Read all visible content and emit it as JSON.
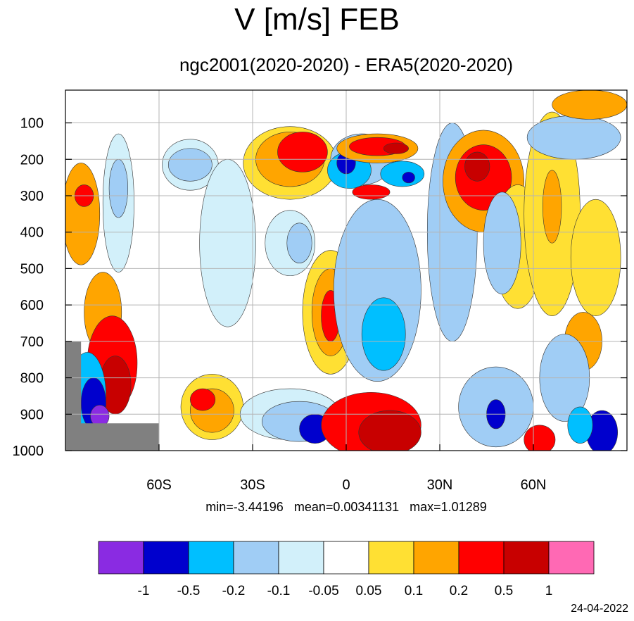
{
  "title": "V [m/s] FEB",
  "subtitle": "ngc2001(2020-2020) - ERA5(2020-2020)",
  "stats": {
    "min": "min=-3.44196",
    "mean": "mean=0.00341131",
    "max": "max=1.01289"
  },
  "date": "24-04-2022",
  "chart_data": {
    "type": "heatmap",
    "title": "V [m/s] FEB",
    "subtitle": "ngc2001(2020-2020) - ERA5(2020-2020)",
    "x_axis": {
      "range": [
        -90,
        90
      ],
      "ticks": [
        -60,
        -30,
        0,
        30,
        60
      ],
      "tick_labels": [
        "60S",
        "30S",
        "0",
        "30N",
        "60N"
      ]
    },
    "y_axis": {
      "range": [
        1000,
        10
      ],
      "ticks": [
        100,
        200,
        300,
        400,
        500,
        600,
        700,
        800,
        900,
        1000
      ],
      "tick_labels": [
        "100",
        "200",
        "300",
        "400",
        "500",
        "600",
        "700",
        "800",
        "900",
        "1000"
      ],
      "inverted": true
    },
    "grid": true,
    "colorbar": {
      "levels": [
        "-1",
        "-0.5",
        "-0.2",
        "-0.1",
        "-0.05",
        "0.05",
        "0.1",
        "0.2",
        "0.5",
        "1"
      ],
      "colors": [
        "#8a2be2",
        "#0000cd",
        "#00bfff",
        "#a0cdf5",
        "#d2f0fa",
        "#ffffff",
        "#ffe033",
        "#ffa500",
        "#ff0000",
        "#c80000",
        "#ff69b4"
      ]
    },
    "stats": {
      "min": -3.44196,
      "mean": 0.00341131,
      "max": 1.01289
    },
    "blobs": [
      {
        "lat": -85,
        "p": 350,
        "rx": 6,
        "ry": 140,
        "level": 7
      },
      {
        "lat": -84,
        "p": 300,
        "rx": 3,
        "ry": 30,
        "level": 8
      },
      {
        "lat": -78,
        "p": 620,
        "rx": 6,
        "ry": 110,
        "level": 7
      },
      {
        "lat": -75,
        "p": 760,
        "rx": 8,
        "ry": 130,
        "level": 8
      },
      {
        "lat": -74,
        "p": 820,
        "rx": 5,
        "ry": 80,
        "level": 9
      },
      {
        "lat": -83,
        "p": 850,
        "rx": 6,
        "ry": 120,
        "level": 2
      },
      {
        "lat": -81,
        "p": 870,
        "rx": 4,
        "ry": 70,
        "level": 1
      },
      {
        "lat": -79,
        "p": 905,
        "rx": 3,
        "ry": 30,
        "level": 0
      },
      {
        "lat": -73,
        "p": 320,
        "rx": 5,
        "ry": 190,
        "level": 4
      },
      {
        "lat": -73,
        "p": 280,
        "rx": 3,
        "ry": 80,
        "level": 3
      },
      {
        "lat": -50,
        "p": 215,
        "rx": 9,
        "ry": 70,
        "level": 4
      },
      {
        "lat": -50,
        "p": 215,
        "rx": 7,
        "ry": 45,
        "level": 3
      },
      {
        "lat": -38,
        "p": 430,
        "rx": 9,
        "ry": 230,
        "level": 4
      },
      {
        "lat": -18,
        "p": 430,
        "rx": 8,
        "ry": 90,
        "level": 4
      },
      {
        "lat": -15,
        "p": 430,
        "rx": 4,
        "ry": 55,
        "level": 3
      },
      {
        "lat": -18,
        "p": 210,
        "rx": 15,
        "ry": 100,
        "level": 6
      },
      {
        "lat": -18,
        "p": 200,
        "rx": 11,
        "ry": 75,
        "level": 7
      },
      {
        "lat": -14,
        "p": 180,
        "rx": 8,
        "ry": 55,
        "level": 8
      },
      {
        "lat": -5,
        "p": 620,
        "rx": 9,
        "ry": 170,
        "level": 6
      },
      {
        "lat": -5,
        "p": 620,
        "rx": 6,
        "ry": 120,
        "level": 7
      },
      {
        "lat": -5,
        "p": 630,
        "rx": 3,
        "ry": 70,
        "level": 8
      },
      {
        "lat": -43,
        "p": 880,
        "rx": 10,
        "ry": 90,
        "level": 6
      },
      {
        "lat": -43,
        "p": 890,
        "rx": 7,
        "ry": 60,
        "level": 7
      },
      {
        "lat": -46,
        "p": 860,
        "rx": 4,
        "ry": 30,
        "level": 8
      },
      {
        "lat": -18,
        "p": 900,
        "rx": 16,
        "ry": 70,
        "level": 4
      },
      {
        "lat": -15,
        "p": 920,
        "rx": 12,
        "ry": 55,
        "level": 3
      },
      {
        "lat": -10,
        "p": 940,
        "rx": 5,
        "ry": 40,
        "level": 1
      },
      {
        "lat": 5,
        "p": 200,
        "rx": 10,
        "ry": 70,
        "level": 3
      },
      {
        "lat": 1,
        "p": 230,
        "rx": 7,
        "ry": 50,
        "level": 2
      },
      {
        "lat": 0,
        "p": 210,
        "rx": 3,
        "ry": 30,
        "level": 1
      },
      {
        "lat": 18,
        "p": 240,
        "rx": 7,
        "ry": 35,
        "level": 2
      },
      {
        "lat": 20,
        "p": 250,
        "rx": 2,
        "ry": 15,
        "level": 1
      },
      {
        "lat": 10,
        "p": 170,
        "rx": 13,
        "ry": 40,
        "level": 7
      },
      {
        "lat": 10,
        "p": 165,
        "rx": 9,
        "ry": 25,
        "level": 8
      },
      {
        "lat": 16,
        "p": 170,
        "rx": 4,
        "ry": 15,
        "level": 9
      },
      {
        "lat": 8,
        "p": 290,
        "rx": 6,
        "ry": 20,
        "level": 8
      },
      {
        "lat": 10,
        "p": 560,
        "rx": 14,
        "ry": 250,
        "level": 3
      },
      {
        "lat": 12,
        "p": 680,
        "rx": 7,
        "ry": 100,
        "level": 2
      },
      {
        "lat": 8,
        "p": 930,
        "rx": 16,
        "ry": 90,
        "level": 8
      },
      {
        "lat": 14,
        "p": 950,
        "rx": 10,
        "ry": 60,
        "level": 9
      },
      {
        "lat": 34,
        "p": 400,
        "rx": 8,
        "ry": 300,
        "level": 3
      },
      {
        "lat": 44,
        "p": 260,
        "rx": 13,
        "ry": 140,
        "level": 7
      },
      {
        "lat": 44,
        "p": 250,
        "rx": 9,
        "ry": 90,
        "level": 8
      },
      {
        "lat": 42,
        "p": 220,
        "rx": 4,
        "ry": 40,
        "level": 9
      },
      {
        "lat": 55,
        "p": 440,
        "rx": 8,
        "ry": 170,
        "level": 6
      },
      {
        "lat": 50,
        "p": 430,
        "rx": 6,
        "ry": 140,
        "level": 3
      },
      {
        "lat": 48,
        "p": 880,
        "rx": 12,
        "ry": 110,
        "level": 3
      },
      {
        "lat": 48,
        "p": 900,
        "rx": 3,
        "ry": 40,
        "level": 1
      },
      {
        "lat": 66,
        "p": 350,
        "rx": 9,
        "ry": 280,
        "level": 6
      },
      {
        "lat": 66,
        "p": 330,
        "rx": 3,
        "ry": 100,
        "level": 7
      },
      {
        "lat": 80,
        "p": 470,
        "rx": 8,
        "ry": 160,
        "level": 6
      },
      {
        "lat": 76,
        "p": 700,
        "rx": 6,
        "ry": 80,
        "level": 7
      },
      {
        "lat": 73,
        "p": 140,
        "rx": 15,
        "ry": 60,
        "level": 3
      },
      {
        "lat": 78,
        "p": 50,
        "rx": 12,
        "ry": 40,
        "level": 7
      },
      {
        "lat": 70,
        "p": 800,
        "rx": 8,
        "ry": 120,
        "level": 3
      },
      {
        "lat": 82,
        "p": 950,
        "rx": 5,
        "ry": 60,
        "level": 1
      },
      {
        "lat": 75,
        "p": 930,
        "rx": 4,
        "ry": 50,
        "level": 2
      },
      {
        "lat": 62,
        "p": 970,
        "rx": 5,
        "ry": 40,
        "level": 8
      }
    ]
  }
}
